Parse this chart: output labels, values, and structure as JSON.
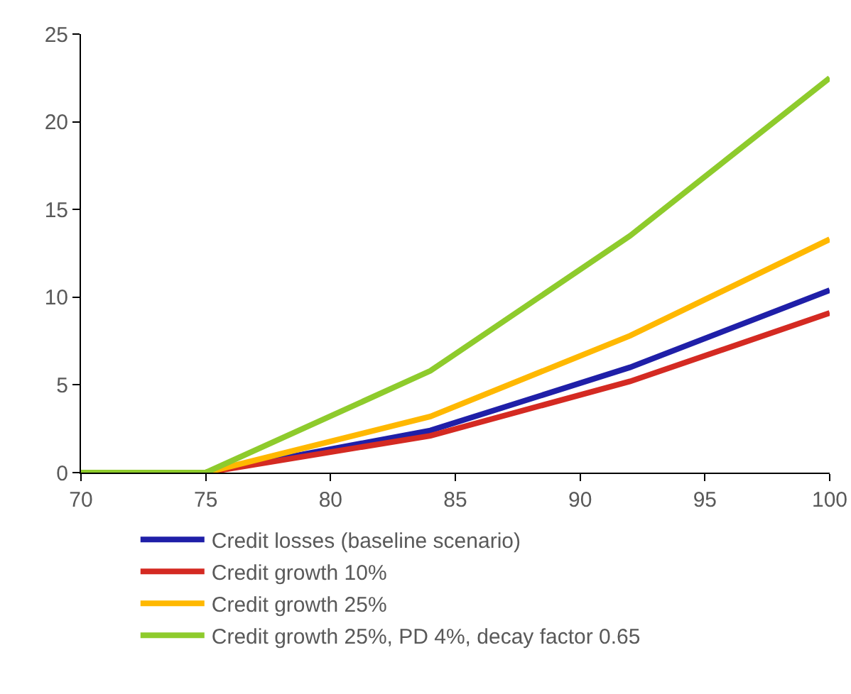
{
  "chart_data": {
    "type": "line",
    "x": [
      70,
      75,
      84,
      92,
      100
    ],
    "series": [
      {
        "name": "Credit losses (baseline scenario)",
        "color": "#1f1fa8",
        "values": [
          0,
          0,
          2.4,
          6.0,
          10.4
        ]
      },
      {
        "name": "Credit growth 10%",
        "color": "#d42a22",
        "values": [
          0,
          0,
          2.1,
          5.2,
          9.1
        ]
      },
      {
        "name": "Credit growth 25%",
        "color": "#ffb800",
        "values": [
          0,
          0,
          3.2,
          7.8,
          13.3
        ]
      },
      {
        "name": "Credit growth 25%, PD 4%, decay factor 0.65",
        "color": "#8ecb2c",
        "values": [
          0,
          0,
          5.8,
          13.5,
          22.5
        ]
      }
    ],
    "xlim": [
      70,
      100
    ],
    "xticks": [
      70,
      75,
      80,
      85,
      90,
      95,
      100
    ],
    "ylim": [
      0,
      25
    ],
    "yticks": [
      0,
      5,
      10,
      15,
      20,
      25
    ],
    "grid": false,
    "legend": "bottom",
    "marker": "none",
    "line_style": "solid"
  }
}
